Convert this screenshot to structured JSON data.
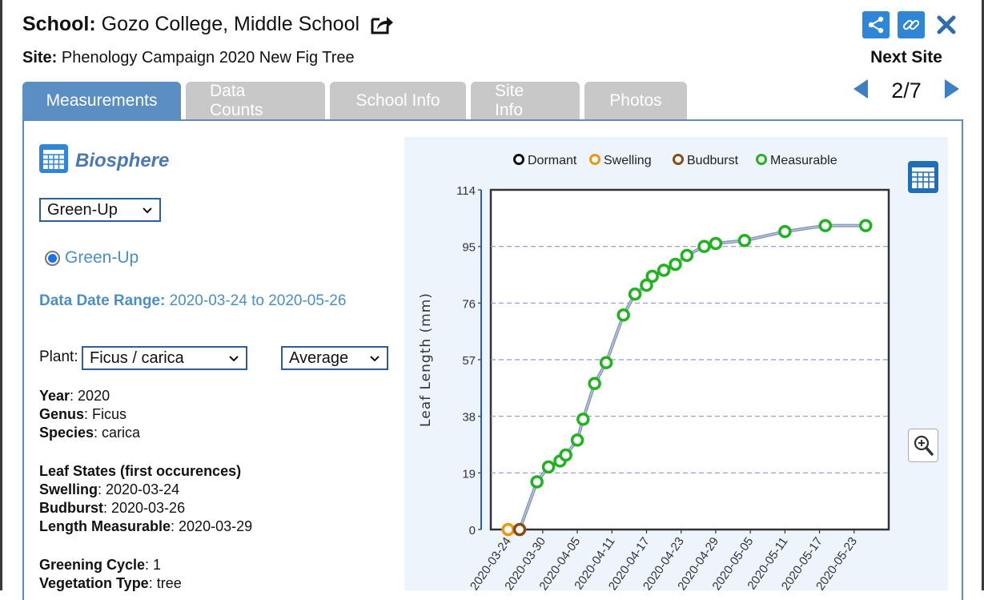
{
  "header": {
    "school_label": "School:",
    "school_name": "Gozo College, Middle School",
    "site_label": "Site:",
    "site_name": "Phenology Campaign 2020 New Fig Tree",
    "next_site_label": "Next Site",
    "pager": "2/7"
  },
  "tabs": [
    {
      "label": "Measurements",
      "active": true
    },
    {
      "label": "Data Counts",
      "active": false
    },
    {
      "label": "School Info",
      "active": false
    },
    {
      "label": "Site Info",
      "active": false
    },
    {
      "label": "Photos",
      "active": false
    }
  ],
  "left": {
    "section_title": "Biosphere",
    "protocol_select": "Green-Up",
    "radio_label": "Green-Up",
    "range_label": "Data Date Range:",
    "range_value": "2020-03-24 to 2020-05-26",
    "plant_label": "Plant:",
    "plant_select": "Ficus / carica",
    "stat_select": "Average",
    "year_label": "Year",
    "year_value": ": 2020",
    "genus_label": "Genus",
    "genus_value": ": Ficus",
    "species_label": "Species",
    "species_value": ": carica",
    "leaf_states_title": "Leaf States (first occurences)",
    "swelling_label": "Swelling",
    "swelling_value": ": 2020-03-24",
    "budburst_label": "Budburst",
    "budburst_value": ": 2020-03-26",
    "measurable_label": "Length Measurable",
    "measurable_value": ": 2020-03-29",
    "cycle_label": "Greening Cycle",
    "cycle_value": ": 1",
    "veg_label": "Vegetation Type",
    "veg_value": ": tree"
  },
  "colors": {
    "dormant": "#111111",
    "swelling": "#f0960a",
    "budburst": "#8b4a12",
    "measurable": "#1fb31f",
    "line": "#8ca0bf",
    "tab_active": "#5b8fc4",
    "tab_inactive": "#c8c8c8",
    "accent": "#2f86d6"
  },
  "icons": {
    "share_external": "share-external-icon",
    "share": "share-icon",
    "link": "link-icon",
    "close": "close-icon",
    "prev": "arrow-left-icon",
    "next": "arrow-right-icon",
    "table": "table-icon",
    "zoom": "zoom-icon"
  },
  "chart_data": {
    "type": "line",
    "ylabel": "Leaf Length (mm)",
    "ylim": [
      0,
      114
    ],
    "y_ticks": [
      0,
      19,
      38,
      57,
      76,
      95,
      114
    ],
    "x_tick_labels": [
      "2020-03-24",
      "2020-03-30",
      "2020-04-05",
      "2020-04-11",
      "2020-04-17",
      "2020-04-23",
      "2020-04-29",
      "2020-05-05",
      "2020-05-11",
      "2020-05-17",
      "2020-05-23"
    ],
    "xlim": [
      "2020-03-21",
      "2020-05-29"
    ],
    "grid": "horizontal dashed",
    "legend_position": "top",
    "legend": [
      {
        "label": "Dormant",
        "color": "#111111"
      },
      {
        "label": "Swelling",
        "color": "#f0960a"
      },
      {
        "label": "Budburst",
        "color": "#8b4a12"
      },
      {
        "label": "Measurable",
        "color": "#1fb31f"
      }
    ],
    "points": [
      {
        "x": "2020-03-24",
        "y": 0,
        "state": "Swelling"
      },
      {
        "x": "2020-03-26",
        "y": 0,
        "state": "Budburst"
      },
      {
        "x": "2020-03-29",
        "y": 16,
        "state": "Measurable"
      },
      {
        "x": "2020-03-31",
        "y": 21,
        "state": "Measurable"
      },
      {
        "x": "2020-04-02",
        "y": 23,
        "state": "Measurable"
      },
      {
        "x": "2020-04-03",
        "y": 25,
        "state": "Measurable"
      },
      {
        "x": "2020-04-05",
        "y": 30,
        "state": "Measurable"
      },
      {
        "x": "2020-04-06",
        "y": 37,
        "state": "Measurable"
      },
      {
        "x": "2020-04-08",
        "y": 49,
        "state": "Measurable"
      },
      {
        "x": "2020-04-10",
        "y": 56,
        "state": "Measurable"
      },
      {
        "x": "2020-04-13",
        "y": 72,
        "state": "Measurable"
      },
      {
        "x": "2020-04-15",
        "y": 79,
        "state": "Measurable"
      },
      {
        "x": "2020-04-17",
        "y": 82,
        "state": "Measurable"
      },
      {
        "x": "2020-04-18",
        "y": 85,
        "state": "Measurable"
      },
      {
        "x": "2020-04-20",
        "y": 87,
        "state": "Measurable"
      },
      {
        "x": "2020-04-22",
        "y": 89,
        "state": "Measurable"
      },
      {
        "x": "2020-04-24",
        "y": 92,
        "state": "Measurable"
      },
      {
        "x": "2020-04-27",
        "y": 95,
        "state": "Measurable"
      },
      {
        "x": "2020-04-29",
        "y": 96,
        "state": "Measurable"
      },
      {
        "x": "2020-05-04",
        "y": 97,
        "state": "Measurable"
      },
      {
        "x": "2020-05-11",
        "y": 100,
        "state": "Measurable"
      },
      {
        "x": "2020-05-18",
        "y": 102,
        "state": "Measurable"
      },
      {
        "x": "2020-05-25",
        "y": 102,
        "state": "Measurable"
      }
    ]
  }
}
